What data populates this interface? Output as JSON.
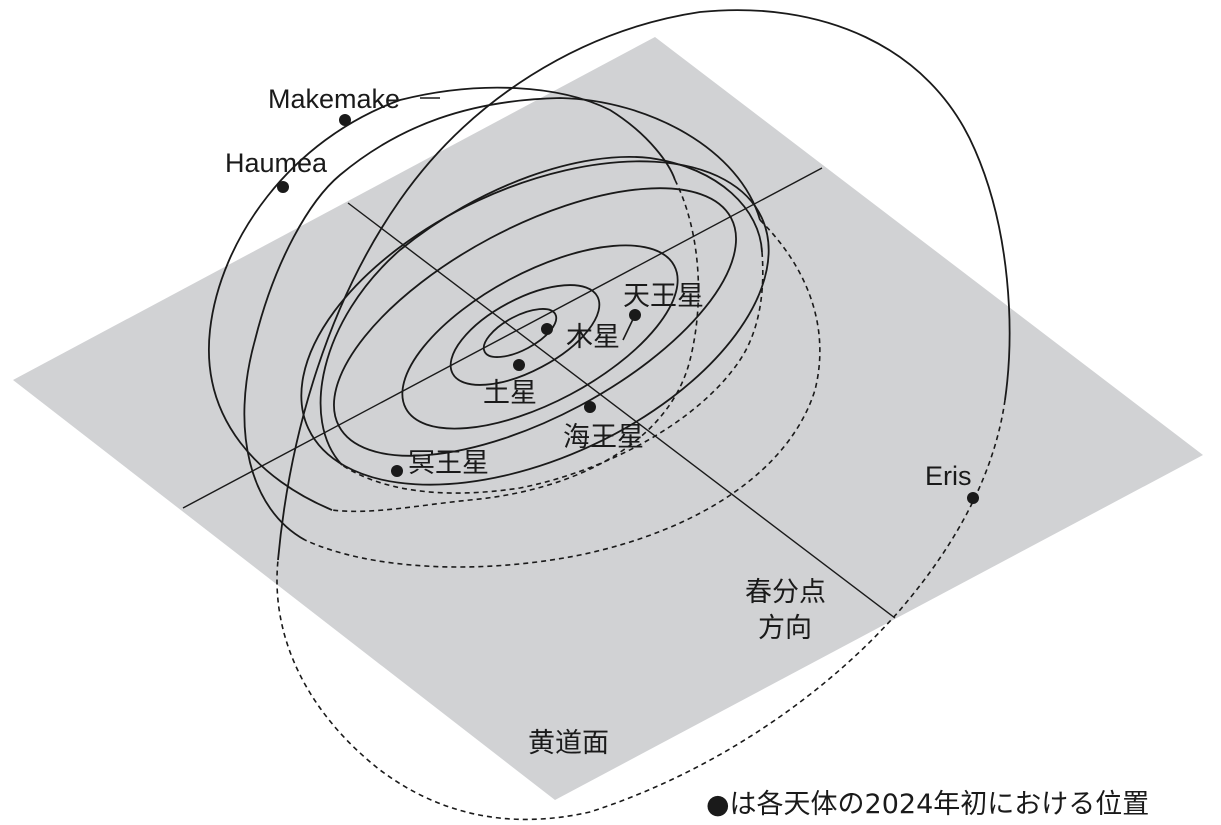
{
  "colors": {
    "plane": "#d1d2d4",
    "ink": "#1a1a1a",
    "background": "#ffffff"
  },
  "labels": {
    "jupiter": "木星",
    "saturn": "土星",
    "uranus": "天王星",
    "neptune": "海王星",
    "pluto": "冥王星",
    "makemake": "Makemake",
    "haumea": "Haumea",
    "eris": "Eris",
    "vernal_line1": "春分点",
    "vernal_line2": "方向",
    "ecliptic_plane": "黄道面",
    "footnote": "●は各天体の2024年初における位置"
  }
}
